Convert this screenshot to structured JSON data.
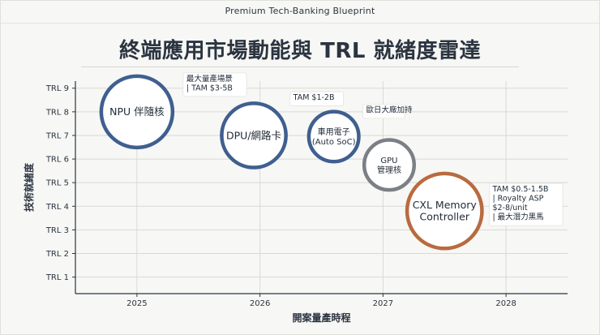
{
  "header": {
    "title": "Premium Tech-Banking Blueprint"
  },
  "chart_data": {
    "type": "scatter",
    "title": "終端應用市場動能與 TRL 就緒度雷達",
    "xlabel": "開案量產時程",
    "ylabel": "技術就緒度",
    "x_ticks": [
      "2025",
      "2026",
      "2027",
      "2028"
    ],
    "x_tick_values": [
      2025,
      2026,
      2027,
      2028
    ],
    "y_ticks": [
      "TRL 1",
      "TRL 2",
      "TRL 3",
      "TRL 4",
      "TRL 5",
      "TRL 6",
      "TRL 7",
      "TRL 8",
      "TRL 9"
    ],
    "y_tick_values": [
      1,
      2,
      3,
      4,
      5,
      6,
      7,
      8,
      9
    ],
    "xlim": [
      2024.5,
      2028.5
    ],
    "ylim": [
      0.3,
      9.3
    ],
    "grid": true,
    "points": [
      {
        "label_lines": [
          "NPU 伴隨核"
        ],
        "x": 2025.0,
        "y": 8.0,
        "size": 1.0,
        "color": "#3f5f8f",
        "annotation_lines": [
          "最大量產場景",
          "| TAM $3-5B"
        ]
      },
      {
        "label_lines": [
          "DPU/網路卡"
        ],
        "x": 2025.95,
        "y": 7.0,
        "size": 0.9,
        "color": "#3f5f8f",
        "annotation_lines": [
          "TAM $1-2B"
        ]
      },
      {
        "label_lines": [
          "車用電子",
          "(Auto SoC)"
        ],
        "x": 2026.6,
        "y": 6.95,
        "size": 0.7,
        "color": "#3f5f8f",
        "annotation_lines": [
          "歐日大廠加持"
        ]
      },
      {
        "label_lines": [
          "GPU",
          "管理核"
        ],
        "x": 2027.05,
        "y": 5.75,
        "size": 0.7,
        "color": "#7c7f85",
        "annotation_lines": []
      },
      {
        "label_lines": [
          "CXL Memory",
          "Controller"
        ],
        "x": 2027.5,
        "y": 3.8,
        "size": 1.05,
        "color": "#b86b3f",
        "annotation_lines": [
          "TAM $0.5-1.5B",
          "| Royalty ASP",
          "  $2-8/unit",
          "| 最大潛力黑馬"
        ]
      }
    ]
  },
  "colors": {
    "primary": "#3f5f8f",
    "neutral": "#7c7f85",
    "accent": "#b86b3f",
    "grid": "#d9d9d4",
    "background": "#f7f7f5"
  }
}
